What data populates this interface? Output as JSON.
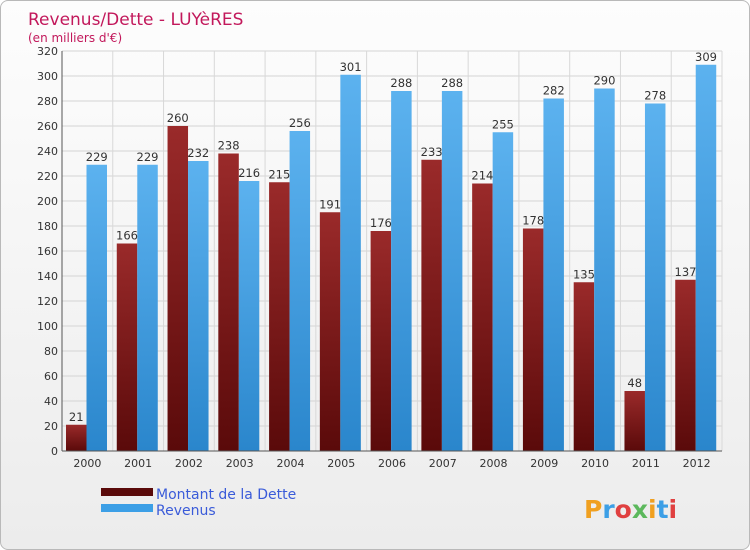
{
  "chart_data": {
    "type": "bar",
    "title": "Revenus/Dette - LUYèRES",
    "subtitle": "(en milliers d'€)",
    "categories": [
      "2000",
      "2001",
      "2002",
      "2003",
      "2004",
      "2005",
      "2006",
      "2007",
      "2008",
      "2009",
      "2010",
      "2011",
      "2012"
    ],
    "series": [
      {
        "name": "Montant de la Dette",
        "color": "#8b1c1c",
        "values": [
          21,
          166,
          260,
          238,
          215,
          191,
          176,
          233,
          214,
          178,
          135,
          48,
          137
        ]
      },
      {
        "name": "Revenus",
        "color": "#3c9fe6",
        "values": [
          229,
          229,
          232,
          216,
          256,
          301,
          288,
          288,
          255,
          282,
          290,
          278,
          309
        ]
      }
    ],
    "ylim": [
      0,
      320
    ],
    "yticks": [
      0,
      20,
      40,
      60,
      80,
      100,
      120,
      140,
      160,
      180,
      200,
      220,
      240,
      260,
      280,
      300,
      320
    ],
    "grid": true,
    "legend_position": "bottom-left"
  },
  "title_color": "#c2185b",
  "legend_text_color": "#3a5bd9",
  "logo": "Proxiti"
}
